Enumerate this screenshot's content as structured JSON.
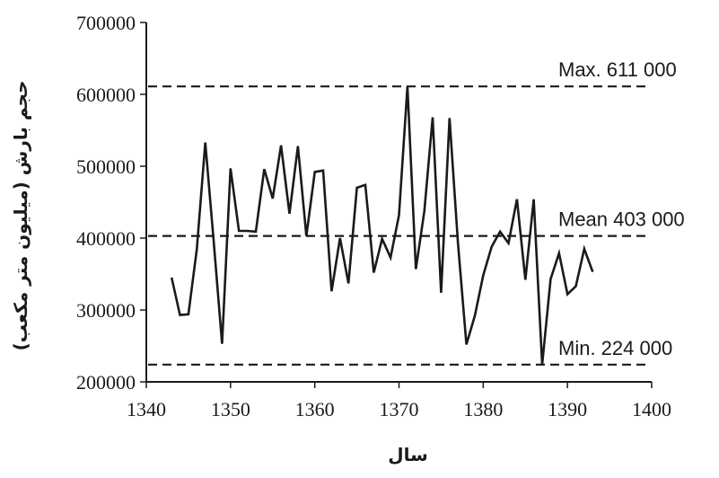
{
  "chart_data": {
    "type": "line",
    "xlabel": "سال",
    "ylabel": "حجم بارش (میلیون متر مکعب)",
    "xlim": [
      1340,
      1400
    ],
    "ylim": [
      200000,
      700000
    ],
    "xticks": [
      "1340",
      "1350",
      "1360",
      "1370",
      "1380",
      "1390",
      "1400"
    ],
    "yticks": [
      "200000",
      "300000",
      "400000",
      "500000",
      "600000",
      "700000"
    ],
    "grid": false,
    "series": [
      {
        "x": [
          1343,
          1344,
          1345,
          1346,
          1347,
          1348,
          1349,
          1350,
          1351,
          1352,
          1353,
          1354,
          1355,
          1356,
          1357,
          1358,
          1359,
          1360,
          1361,
          1362,
          1363,
          1364,
          1365,
          1366,
          1367,
          1368,
          1369,
          1370,
          1371,
          1372,
          1373,
          1374,
          1375,
          1376,
          1377,
          1378,
          1379,
          1380,
          1381,
          1382,
          1383,
          1384,
          1385,
          1386,
          1387,
          1388,
          1389,
          1390,
          1391,
          1392,
          1393
        ],
        "y": [
          345000,
          293000,
          294000,
          385000,
          533000,
          395000,
          253000,
          497000,
          410000,
          410000,
          409000,
          496000,
          455000,
          529000,
          434000,
          528000,
          403000,
          492000,
          494000,
          326000,
          400000,
          337000,
          470000,
          474000,
          352000,
          399000,
          373000,
          432000,
          611000,
          357000,
          437000,
          568000,
          324000,
          567000,
          393000,
          252000,
          292000,
          348000,
          388000,
          409000,
          393000,
          454000,
          342000,
          454000,
          224000,
          343000,
          379000,
          322000,
          333000,
          385000,
          353000
        ]
      }
    ],
    "reference_lines": [
      {
        "label": "Max. 611 000",
        "value": 611000
      },
      {
        "label": "Mean 403 000",
        "value": 403000
      },
      {
        "label": "Min. 224 000",
        "value": 224000
      }
    ]
  }
}
